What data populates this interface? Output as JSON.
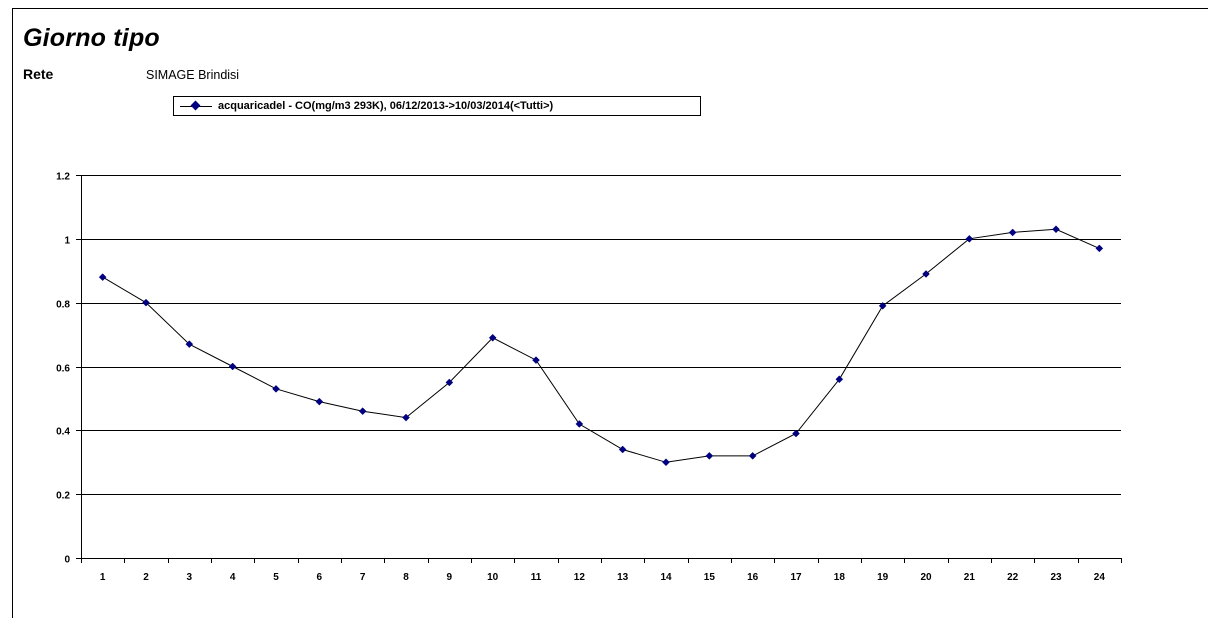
{
  "header": {
    "title": "Giorno tipo",
    "rete_label": "Rete",
    "rete_value": "SIMAGE Brindisi"
  },
  "legend": {
    "label": "acquaricadel - CO(mg/m3 293K), 06/12/2013->10/03/2014(<Tutti>)"
  },
  "chart_data": {
    "type": "line",
    "title": "",
    "xlabel": "",
    "ylabel": "",
    "categories": [
      "1",
      "2",
      "3",
      "4",
      "5",
      "6",
      "7",
      "8",
      "9",
      "10",
      "11",
      "12",
      "13",
      "14",
      "15",
      "16",
      "17",
      "18",
      "19",
      "20",
      "21",
      "22",
      "23",
      "24"
    ],
    "series": [
      {
        "name": "acquaricadel - CO(mg/m3 293K), 06/12/2013->10/03/2014(<Tutti>)",
        "values": [
          0.88,
          0.8,
          0.67,
          0.6,
          0.53,
          0.49,
          0.46,
          0.44,
          0.55,
          0.69,
          0.62,
          0.42,
          0.34,
          0.3,
          0.32,
          0.32,
          0.39,
          0.56,
          0.79,
          0.89,
          1.0,
          1.02,
          1.03,
          0.97
        ],
        "color": "#000080",
        "line_color": "#000000",
        "marker": "diamond"
      }
    ],
    "ylim": [
      0,
      1.2
    ],
    "yticks": [
      0,
      0.2,
      0.4,
      0.6,
      0.8,
      1,
      1.2
    ],
    "ytick_labels": [
      "0",
      "0.2",
      "0.4",
      "0.6",
      "0.8",
      "1",
      "1.2"
    ],
    "grid": true,
    "legend_position": "top"
  }
}
